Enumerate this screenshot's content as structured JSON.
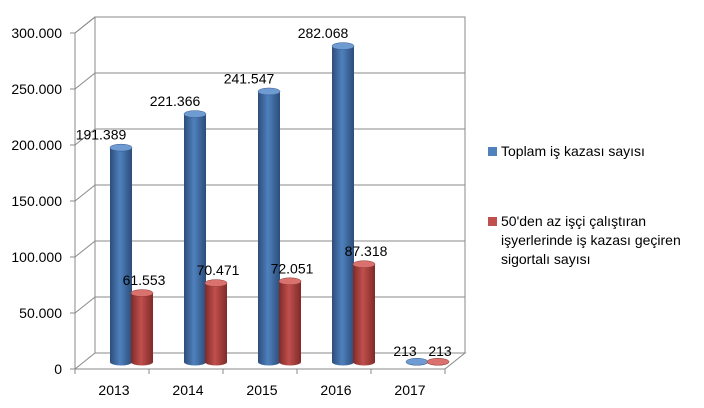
{
  "chart_data": {
    "type": "bar",
    "style": "3d-cylinder",
    "categories": [
      "2013",
      "2014",
      "2015",
      "2016",
      "2017"
    ],
    "series": [
      {
        "name": "Toplam iş kazası sayısı",
        "values": [
          191389,
          221366,
          241547,
          282068,
          213
        ],
        "labels": [
          "191.389",
          "221.366",
          "241.547",
          "282.068",
          "213"
        ],
        "color": "#4F81BD"
      },
      {
        "name": "50'den az işçi çalıştıran işyerlerinde iş kazası geçiren sigortalı sayısı",
        "values": [
          61553,
          70471,
          72051,
          87318,
          213
        ],
        "labels": [
          "61.553",
          "70.471",
          "72.051",
          "87.318",
          "213"
        ],
        "color": "#C0504D"
      }
    ],
    "yticks": [
      "0",
      "50.000",
      "100.000",
      "150.000",
      "200.000",
      "250.000",
      "300.000"
    ],
    "ylim": [
      0,
      300000
    ],
    "legend": "right",
    "grid": true
  }
}
